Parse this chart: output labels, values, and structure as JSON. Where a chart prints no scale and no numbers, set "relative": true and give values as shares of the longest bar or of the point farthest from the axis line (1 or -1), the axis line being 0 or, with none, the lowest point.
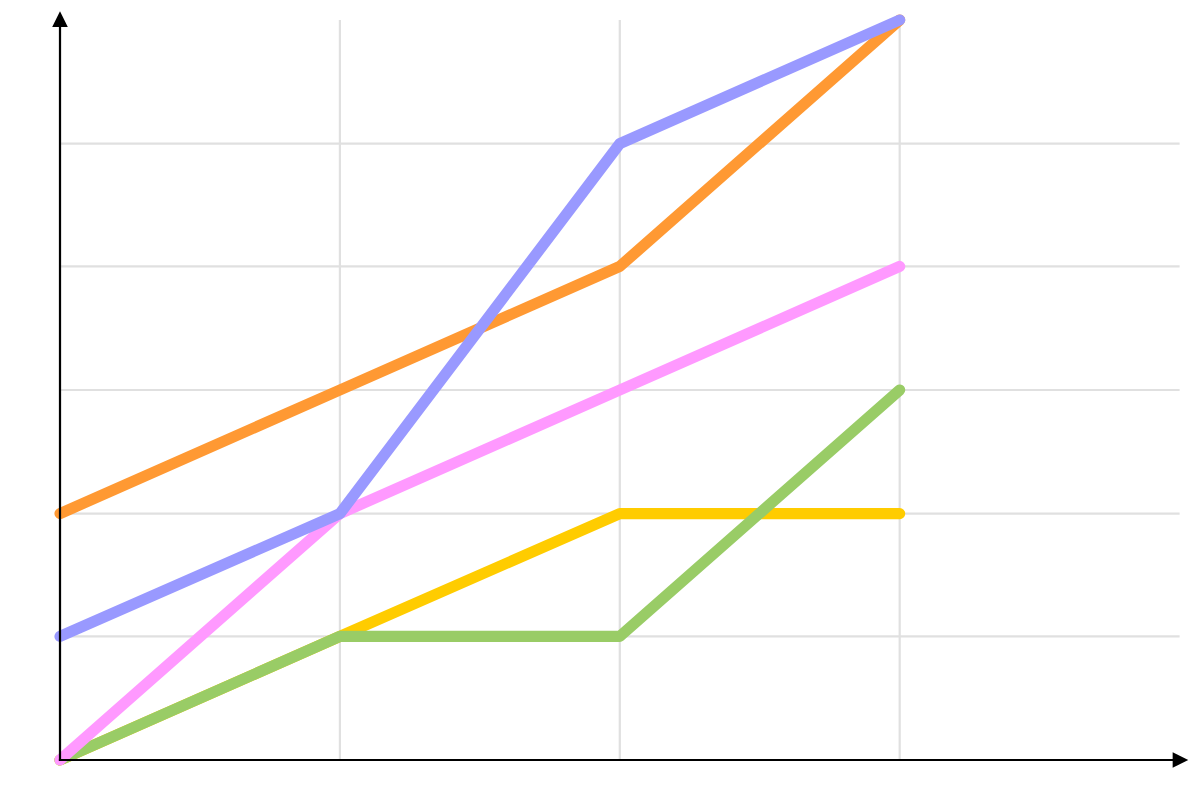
{
  "chart_data": {
    "type": "line",
    "relative": true,
    "grid": true,
    "marker": "none",
    "line_style": "solid",
    "categories": [
      null,
      null,
      null,
      null,
      null
    ],
    "series": [
      {
        "color": "#ffcc00",
        "values": [
          0,
          0.167,
          0.333,
          0.333,
          null
        ]
      },
      {
        "color": "#99cc66",
        "values": [
          0,
          0.167,
          0.167,
          0.5,
          null
        ]
      },
      {
        "color": "#ff99ff",
        "values": [
          0,
          0.333,
          0.5,
          0.667,
          null
        ]
      },
      {
        "color": "#ff9933",
        "values": [
          0.333,
          0.5,
          0.667,
          1,
          null
        ]
      },
      {
        "color": "#9999ff",
        "values": [
          0.167,
          0.333,
          0.833,
          1,
          null
        ]
      }
    ]
  }
}
